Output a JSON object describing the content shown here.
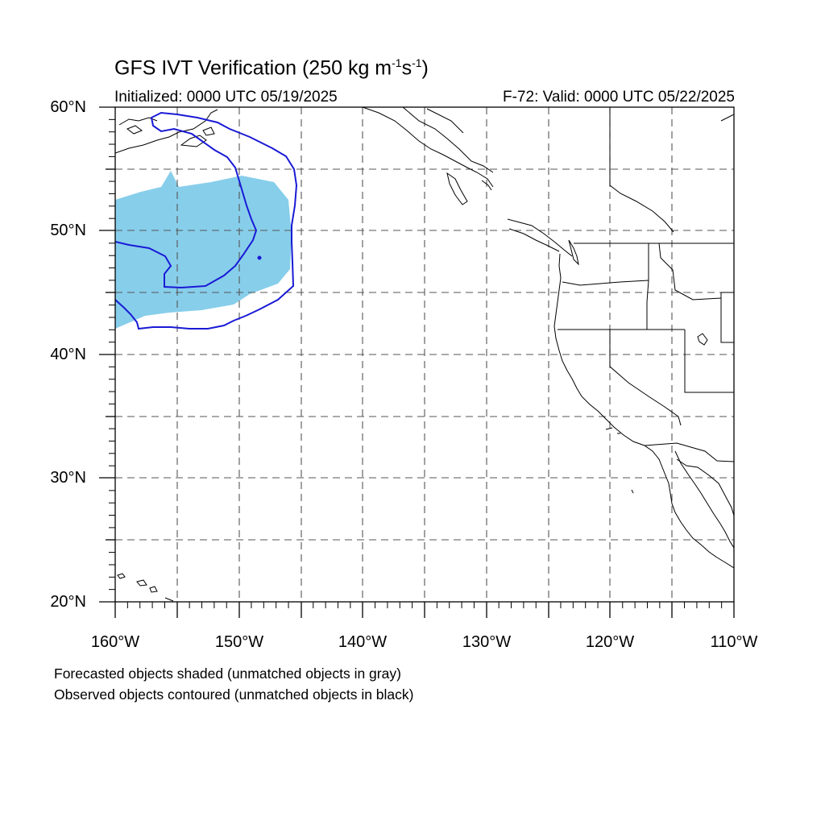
{
  "title": {
    "main": "GFS IVT Verification (250 kg m",
    "exp1": "-1",
    "mid": "s",
    "exp2": "-1",
    "close": ")"
  },
  "initialized": "Initialized: 0000 UTC 05/19/2025",
  "valid": "F-72: Valid: 0000 UTC 05/22/2025",
  "map": {
    "lon_range": [
      -160,
      -110
    ],
    "lat_range": [
      20,
      60
    ],
    "grid": "dashed every 5 degrees",
    "colors": {
      "forecast_shade": "#87ceeb",
      "observed_contour": "#1a1ad6",
      "coastline": "#000000"
    }
  },
  "lat_labels": [
    "60°N",
    "50°N",
    "40°N",
    "30°N",
    "20°N"
  ],
  "lon_labels": [
    "160°W",
    "150°W",
    "140°W",
    "130°W",
    "120°W",
    "110°W"
  ],
  "legend": {
    "line1": "Forecasted objects shaded (unmatched objects in gray)",
    "line2": "Observed objects contoured (unmatched objects in black)"
  }
}
